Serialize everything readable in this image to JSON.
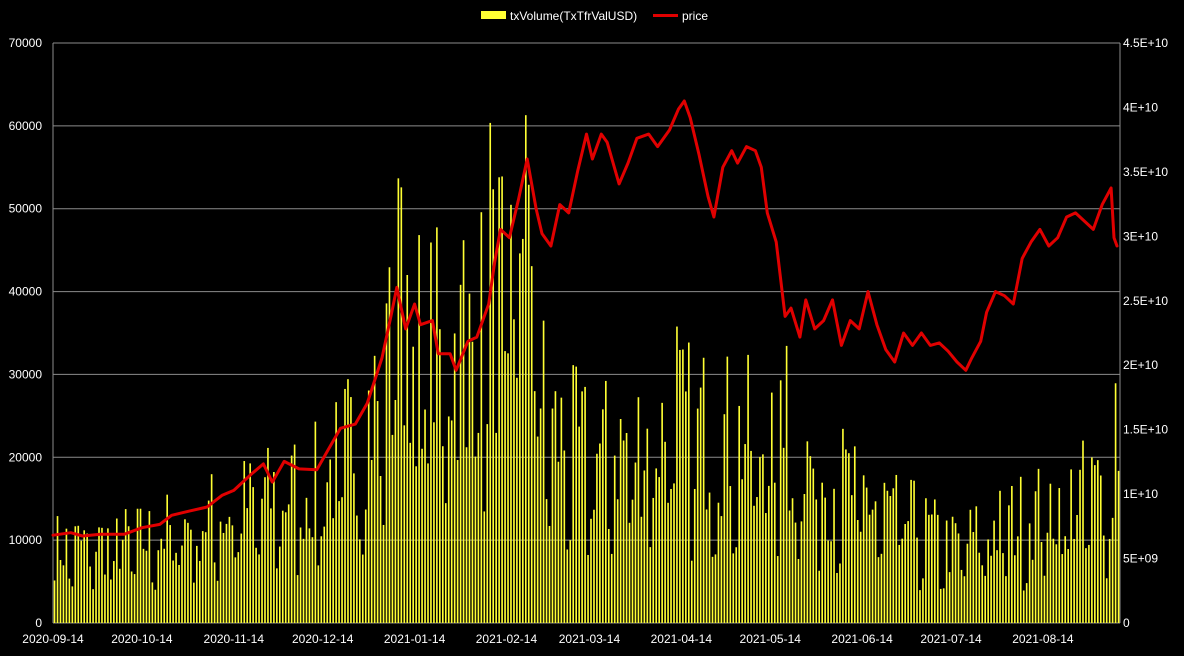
{
  "chart_data": {
    "type": "bar+line",
    "legend": {
      "position": "top-center",
      "items": [
        {
          "label": "txVolume(TxTfrValUSD)",
          "color": "#ffff33",
          "kind": "bar"
        },
        {
          "label": "price",
          "color": "#e00000",
          "kind": "line"
        }
      ]
    },
    "x_labels": [
      "2020-09-14",
      "2020-10-14",
      "2020-11-14",
      "2020-12-14",
      "2021-01-14",
      "2021-02-14",
      "2021-03-14",
      "2021-04-14",
      "2021-05-14",
      "2021-06-14",
      "2021-07-14",
      "2021-08-14"
    ],
    "x_range": [
      "2020-09-14",
      "2021-09-08"
    ],
    "y_left": {
      "min": 0,
      "max": 70000,
      "ticks": [
        "0",
        "10000",
        "20000",
        "30000",
        "40000",
        "50000",
        "60000",
        "70000"
      ],
      "label": ""
    },
    "y_right": {
      "min": 0,
      "max": 45000000000,
      "ticks": [
        "0",
        "5E+09",
        "1E+10",
        "1.5E+10",
        "2E+10",
        "2.5E+10",
        "3E+10",
        "3.5E+10",
        "4E+10",
        "4.5E+10"
      ],
      "label": ""
    },
    "grid": true,
    "colors": {
      "background": "#000000",
      "grid": "#8c8c8c",
      "bar": "#ffff33",
      "line": "#e00000",
      "text": "#ffffff"
    },
    "series": [
      {
        "name": "price",
        "axis": "left",
        "kind": "line",
        "points": [
          [
            "2020-09-14",
            10600
          ],
          [
            "2020-09-20",
            10900
          ],
          [
            "2020-09-24",
            10500
          ],
          [
            "2020-09-30",
            10700
          ],
          [
            "2020-10-08",
            10700
          ],
          [
            "2020-10-14",
            11500
          ],
          [
            "2020-10-20",
            11900
          ],
          [
            "2020-10-24",
            13000
          ],
          [
            "2020-10-30",
            13500
          ],
          [
            "2020-11-05",
            14000
          ],
          [
            "2020-11-10",
            15400
          ],
          [
            "2020-11-14",
            16000
          ],
          [
            "2020-11-20",
            18000
          ],
          [
            "2020-11-24",
            19200
          ],
          [
            "2020-11-27",
            17000
          ],
          [
            "2020-12-01",
            19500
          ],
          [
            "2020-12-06",
            18600
          ],
          [
            "2020-12-12",
            18500
          ],
          [
            "2020-12-16",
            21000
          ],
          [
            "2020-12-20",
            23500
          ],
          [
            "2020-12-25",
            24000
          ],
          [
            "2020-12-29",
            26500
          ],
          [
            "2021-01-03",
            32000
          ],
          [
            "2021-01-06",
            37000
          ],
          [
            "2021-01-08",
            40500
          ],
          [
            "2021-01-11",
            35500
          ],
          [
            "2021-01-14",
            38500
          ],
          [
            "2021-01-16",
            36000
          ],
          [
            "2021-01-20",
            36500
          ],
          [
            "2021-01-22",
            32500
          ],
          [
            "2021-01-26",
            32500
          ],
          [
            "2021-01-28",
            30500
          ],
          [
            "2021-02-01",
            34000
          ],
          [
            "2021-02-04",
            34500
          ],
          [
            "2021-02-08",
            38500
          ],
          [
            "2021-02-10",
            43500
          ],
          [
            "2021-02-12",
            47500
          ],
          [
            "2021-02-15",
            46500
          ],
          [
            "2021-02-18",
            51000
          ],
          [
            "2021-02-21",
            56000
          ],
          [
            "2021-02-24",
            50000
          ],
          [
            "2021-02-26",
            47000
          ],
          [
            "2021-03-01",
            45500
          ],
          [
            "2021-03-04",
            50500
          ],
          [
            "2021-03-07",
            49500
          ],
          [
            "2021-03-10",
            54500
          ],
          [
            "2021-03-13",
            59000
          ],
          [
            "2021-03-15",
            56000
          ],
          [
            "2021-03-18",
            59000
          ],
          [
            "2021-03-20",
            58000
          ],
          [
            "2021-03-24",
            53000
          ],
          [
            "2021-03-27",
            55500
          ],
          [
            "2021-03-30",
            58500
          ],
          [
            "2021-04-03",
            59000
          ],
          [
            "2021-04-06",
            57500
          ],
          [
            "2021-04-10",
            59500
          ],
          [
            "2021-04-13",
            62000
          ],
          [
            "2021-04-15",
            63000
          ],
          [
            "2021-04-17",
            61000
          ],
          [
            "2021-04-20",
            56500
          ],
          [
            "2021-04-23",
            51500
          ],
          [
            "2021-04-25",
            49000
          ],
          [
            "2021-04-28",
            55000
          ],
          [
            "2021-05-01",
            57000
          ],
          [
            "2021-05-03",
            55500
          ],
          [
            "2021-05-06",
            57500
          ],
          [
            "2021-05-09",
            57000
          ],
          [
            "2021-05-11",
            55000
          ],
          [
            "2021-05-13",
            49500
          ],
          [
            "2021-05-16",
            46000
          ],
          [
            "2021-05-19",
            37000
          ],
          [
            "2021-05-21",
            38000
          ],
          [
            "2021-05-24",
            34500
          ],
          [
            "2021-05-26",
            39000
          ],
          [
            "2021-05-29",
            35500
          ],
          [
            "2021-06-01",
            36500
          ],
          [
            "2021-06-04",
            39000
          ],
          [
            "2021-06-07",
            33500
          ],
          [
            "2021-06-10",
            36500
          ],
          [
            "2021-06-13",
            35500
          ],
          [
            "2021-06-16",
            40000
          ],
          [
            "2021-06-19",
            36000
          ],
          [
            "2021-06-22",
            33000
          ],
          [
            "2021-06-25",
            31500
          ],
          [
            "2021-06-28",
            35000
          ],
          [
            "2021-07-01",
            33500
          ],
          [
            "2021-07-04",
            35000
          ],
          [
            "2021-07-07",
            33500
          ],
          [
            "2021-07-10",
            33800
          ],
          [
            "2021-07-13",
            32800
          ],
          [
            "2021-07-16",
            31500
          ],
          [
            "2021-07-19",
            30500
          ],
          [
            "2021-07-21",
            32000
          ],
          [
            "2021-07-24",
            34000
          ],
          [
            "2021-07-26",
            37500
          ],
          [
            "2021-07-29",
            40000
          ],
          [
            "2021-08-01",
            39500
          ],
          [
            "2021-08-04",
            38500
          ],
          [
            "2021-08-07",
            44000
          ],
          [
            "2021-08-10",
            46000
          ],
          [
            "2021-08-13",
            47500
          ],
          [
            "2021-08-16",
            45500
          ],
          [
            "2021-08-19",
            46500
          ],
          [
            "2021-08-22",
            49000
          ],
          [
            "2021-08-25",
            49500
          ],
          [
            "2021-08-28",
            48500
          ],
          [
            "2021-08-31",
            47500
          ],
          [
            "2021-09-03",
            50500
          ],
          [
            "2021-09-06",
            52500
          ],
          [
            "2021-09-07",
            46500
          ],
          [
            "2021-09-08",
            45500
          ]
        ]
      },
      {
        "name": "txVolume(TxTfrValUSD)",
        "axis": "right",
        "kind": "bar",
        "anchors": [
          [
            "2020-09-14",
            6000000000
          ],
          [
            "2020-10-14",
            6500000000
          ],
          [
            "2020-11-14",
            9000000000
          ],
          [
            "2020-12-14",
            11000000000
          ],
          [
            "2021-01-14",
            22000000000
          ],
          [
            "2021-01-31",
            21000000000
          ],
          [
            "2021-02-14",
            27000000000
          ],
          [
            "2021-03-01",
            15000000000
          ],
          [
            "2021-03-14",
            13000000000
          ],
          [
            "2021-04-14",
            15500000000
          ],
          [
            "2021-05-14",
            14000000000
          ],
          [
            "2021-06-14",
            10000000000
          ],
          [
            "2021-07-14",
            6000000000
          ],
          [
            "2021-08-14",
            9000000000
          ],
          [
            "2021-09-08",
            11000000000
          ]
        ],
        "peaks": [
          [
            "2021-01-08",
            34500000000
          ],
          [
            "2021-01-09",
            33800000000
          ],
          [
            "2021-01-11",
            27000000000
          ],
          [
            "2021-02-08",
            38800000000
          ],
          [
            "2021-02-20",
            39400000000
          ],
          [
            "2021-02-21",
            34000000000
          ],
          [
            "2021-02-19",
            29800000000
          ],
          [
            "2021-04-12",
            23000000000
          ],
          [
            "2021-05-19",
            21500000000
          ],
          [
            "2021-01-30",
            29700000000
          ],
          [
            "2021-01-05",
            27600000000
          ],
          [
            "2021-09-07",
            18600000000
          ]
        ]
      }
    ]
  }
}
